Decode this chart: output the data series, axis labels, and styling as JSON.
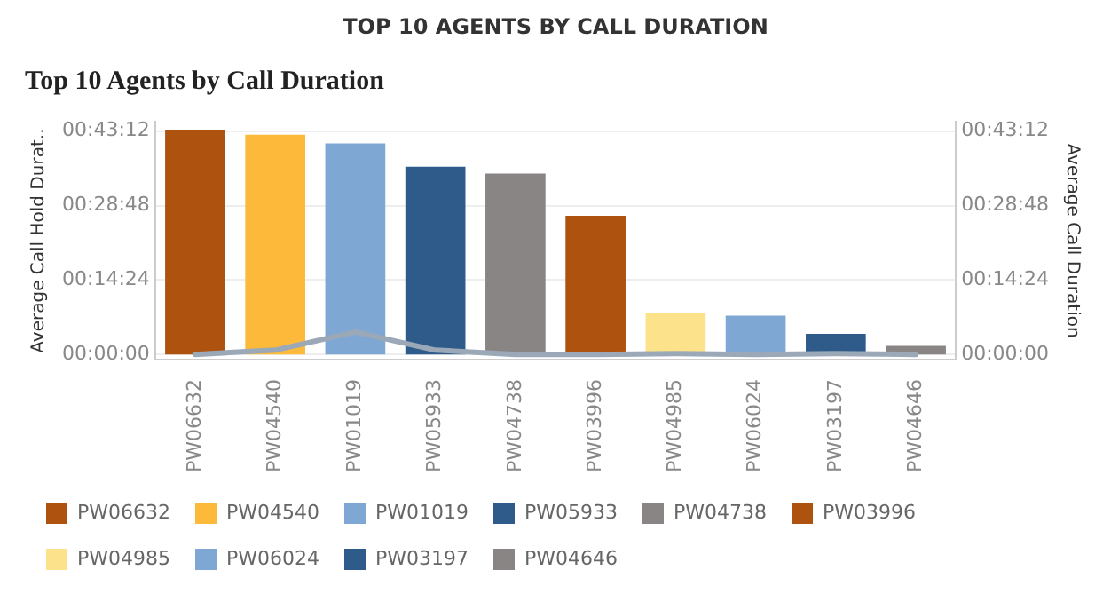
{
  "chart_data": {
    "type": "bar",
    "title": "TOP 10 AGENTS BY CALL DURATION",
    "subtitle": "Top 10 Agents by Call Duration",
    "ylabel": "Average Call Hold Durat..",
    "y2label": "Average Call Duration",
    "categories": [
      "PW06632",
      "PW04540",
      "PW01019",
      "PW05933",
      "PW04738",
      "PW03996",
      "PW04985",
      "PW06024",
      "PW03197",
      "PW04646"
    ],
    "series": [
      {
        "name": "PW06632",
        "axis": "y2",
        "color": "#ae520f",
        "values": [
          2610,
          null,
          null,
          null,
          null,
          null,
          null,
          null,
          null,
          null
        ]
      },
      {
        "name": "PW04540",
        "axis": "y2",
        "color": "#fdb93a",
        "values": [
          null,
          2550,
          null,
          null,
          null,
          null,
          null,
          null,
          null,
          null
        ]
      },
      {
        "name": "PW01019",
        "axis": "y2",
        "color": "#7fa7d3",
        "values": [
          null,
          null,
          2450,
          null,
          null,
          null,
          null,
          null,
          null,
          null
        ]
      },
      {
        "name": "PW05933",
        "axis": "y2",
        "color": "#2e5b8a",
        "values": [
          null,
          null,
          null,
          2180,
          null,
          null,
          null,
          null,
          null,
          null
        ]
      },
      {
        "name": "PW04738",
        "axis": "y2",
        "color": "#8a8585",
        "values": [
          null,
          null,
          null,
          null,
          2100,
          null,
          null,
          null,
          null,
          null
        ]
      },
      {
        "name": "PW03996",
        "axis": "y2",
        "color": "#ae520f",
        "values": [
          null,
          null,
          null,
          null,
          null,
          1610,
          null,
          null,
          null,
          null
        ]
      },
      {
        "name": "PW04985",
        "axis": "y2",
        "color": "#fde28c",
        "values": [
          null,
          null,
          null,
          null,
          null,
          null,
          480,
          null,
          null,
          null
        ]
      },
      {
        "name": "PW06024",
        "axis": "y2",
        "color": "#7fa7d3",
        "values": [
          null,
          null,
          null,
          null,
          null,
          null,
          null,
          450,
          null,
          null
        ]
      },
      {
        "name": "PW03197",
        "axis": "y2",
        "color": "#2e5b8a",
        "values": [
          null,
          null,
          null,
          null,
          null,
          null,
          null,
          null,
          240,
          null
        ]
      },
      {
        "name": "PW04646",
        "axis": "y2",
        "color": "#8a8585",
        "values": [
          null,
          null,
          null,
          null,
          null,
          null,
          null,
          null,
          null,
          100
        ]
      },
      {
        "type": "line",
        "axis": "y",
        "color": "#9aa8b8",
        "values": [
          0,
          50,
          260,
          50,
          0,
          0,
          10,
          0,
          10,
          0
        ]
      }
    ],
    "ylim": [
      -60,
      2700
    ],
    "yticks": [
      {
        "value": 0,
        "label": "00:00:00"
      },
      {
        "value": 864,
        "label": "00:14:24"
      },
      {
        "value": 1728,
        "label": "00:28:48"
      },
      {
        "value": 2592,
        "label": "00:43:12"
      }
    ],
    "y2lim": [
      -60,
      2700
    ],
    "y2ticks": [
      {
        "value": 0,
        "label": "00:00:00"
      },
      {
        "value": 864,
        "label": "00:14:24"
      },
      {
        "value": 1728,
        "label": "00:28:48"
      },
      {
        "value": 2592,
        "label": "00:43:12"
      }
    ],
    "grid": "y",
    "legend": "bottom",
    "marker": "none"
  }
}
